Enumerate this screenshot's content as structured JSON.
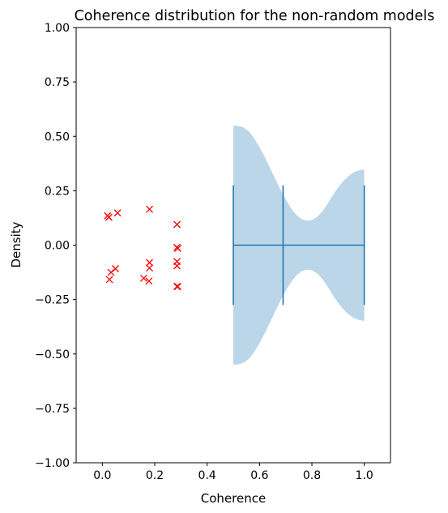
{
  "chart_data": {
    "type": "scatter",
    "title": "Coherence distribution for the non-random models",
    "xlabel": "Coherence",
    "ylabel": "Density",
    "xlim": [
      -0.1,
      1.1
    ],
    "ylim": [
      -1.0,
      1.0
    ],
    "xticks": [
      0.0,
      0.2,
      0.4,
      0.6,
      0.8,
      1.0
    ],
    "xtick_labels": [
      "0.0",
      "0.2",
      "0.4",
      "0.6",
      "0.8",
      "1.0"
    ],
    "yticks": [
      1.0,
      0.75,
      0.5,
      0.25,
      0.0,
      -0.25,
      -0.5,
      -0.75,
      -1.0
    ],
    "ytick_labels": [
      "1.00",
      "0.75",
      "0.50",
      "0.25",
      "0.00",
      "−0.25",
      "−0.50",
      "−0.75",
      "−1.00"
    ],
    "grid": false,
    "legend": "none",
    "scatter": {
      "marker": "x",
      "color": "#ff0000",
      "points": [
        {
          "x": 0.02,
          "y": 0.135
        },
        {
          "x": 0.025,
          "y": 0.128
        },
        {
          "x": 0.058,
          "y": 0.148
        },
        {
          "x": 0.18,
          "y": 0.165
        },
        {
          "x": 0.285,
          "y": 0.095
        },
        {
          "x": 0.285,
          "y": -0.01
        },
        {
          "x": 0.288,
          "y": -0.015
        },
        {
          "x": 0.285,
          "y": -0.075
        },
        {
          "x": 0.285,
          "y": -0.095
        },
        {
          "x": 0.18,
          "y": -0.08
        },
        {
          "x": 0.18,
          "y": -0.105
        },
        {
          "x": 0.05,
          "y": -0.108
        },
        {
          "x": 0.033,
          "y": -0.125
        },
        {
          "x": 0.027,
          "y": -0.158
        },
        {
          "x": 0.158,
          "y": -0.152
        },
        {
          "x": 0.178,
          "y": -0.165
        },
        {
          "x": 0.285,
          "y": -0.19
        },
        {
          "x": 0.288,
          "y": -0.19
        }
      ]
    },
    "violin": {
      "orientation": "horizontal",
      "center_y": 0.0,
      "fill_color": "#1f77b4",
      "fill_opacity": 0.3,
      "line_color": "#1f77b4",
      "min": 0.5,
      "median": 0.69,
      "max": 1.0,
      "half_width_profile": [
        {
          "x": 0.5,
          "w": 0.55
        },
        {
          "x": 0.52,
          "w": 0.548
        },
        {
          "x": 0.54,
          "w": 0.54
        },
        {
          "x": 0.56,
          "w": 0.522
        },
        {
          "x": 0.58,
          "w": 0.49
        },
        {
          "x": 0.6,
          "w": 0.45
        },
        {
          "x": 0.62,
          "w": 0.405
        },
        {
          "x": 0.64,
          "w": 0.355
        },
        {
          "x": 0.66,
          "w": 0.305
        },
        {
          "x": 0.68,
          "w": 0.255
        },
        {
          "x": 0.7,
          "w": 0.21
        },
        {
          "x": 0.72,
          "w": 0.17
        },
        {
          "x": 0.74,
          "w": 0.14
        },
        {
          "x": 0.76,
          "w": 0.12
        },
        {
          "x": 0.78,
          "w": 0.112
        },
        {
          "x": 0.8,
          "w": 0.115
        },
        {
          "x": 0.82,
          "w": 0.13
        },
        {
          "x": 0.84,
          "w": 0.155
        },
        {
          "x": 0.86,
          "w": 0.19
        },
        {
          "x": 0.88,
          "w": 0.23
        },
        {
          "x": 0.9,
          "w": 0.265
        },
        {
          "x": 0.92,
          "w": 0.295
        },
        {
          "x": 0.94,
          "w": 0.318
        },
        {
          "x": 0.96,
          "w": 0.335
        },
        {
          "x": 0.98,
          "w": 0.344
        },
        {
          "x": 1.0,
          "w": 0.348
        }
      ],
      "cap_half_height": 0.275
    }
  }
}
